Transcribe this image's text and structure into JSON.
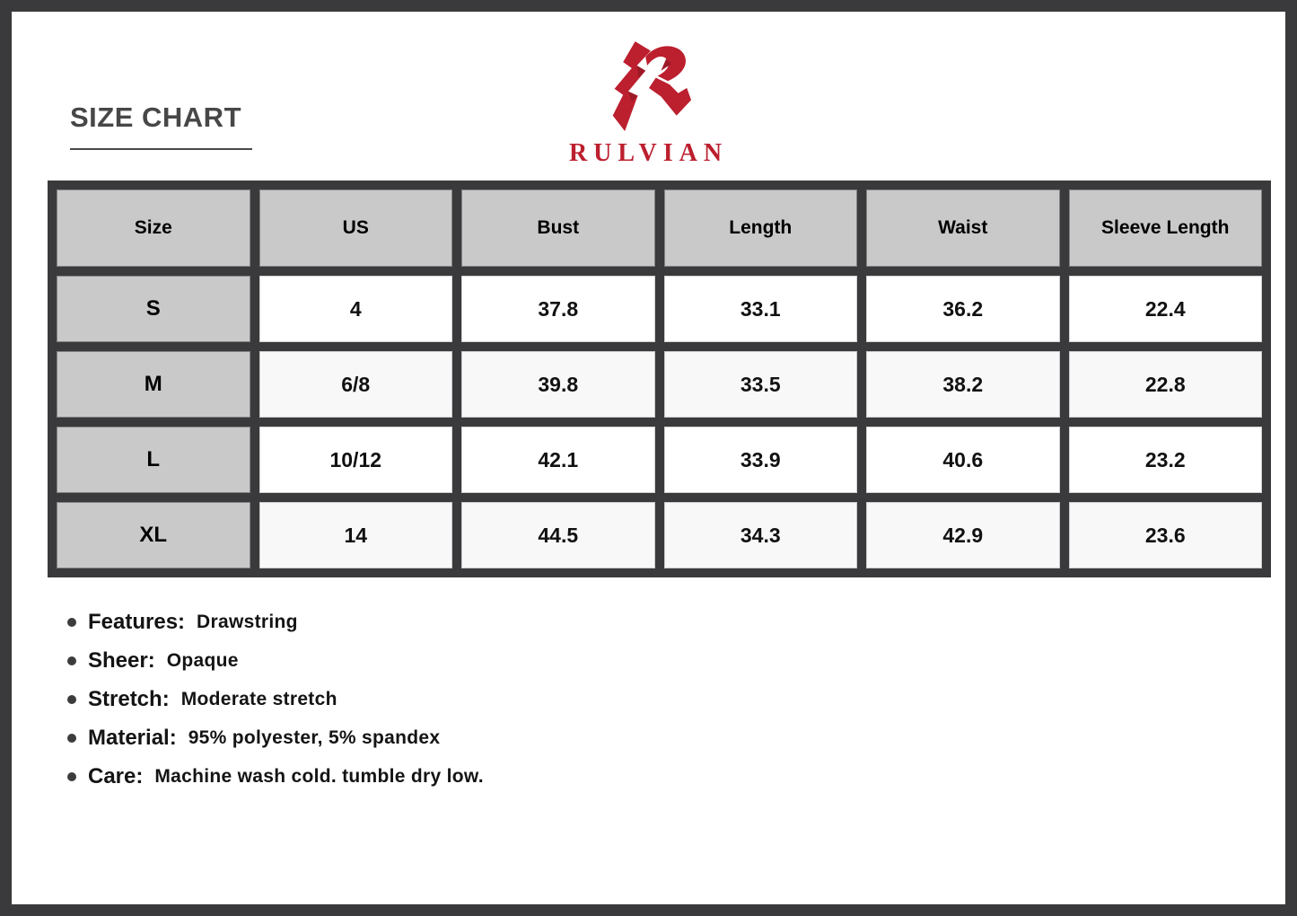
{
  "header": {
    "title": "SIZE CHART"
  },
  "brand": {
    "wordmark": "RULVIAN",
    "logo_icon": "rulvian-r-logo",
    "logo_color": "#bc1f2e"
  },
  "chart_data": {
    "type": "table",
    "title": "SIZE CHART",
    "columns": [
      "Size",
      "US",
      "Bust",
      "Length",
      "Waist",
      "Sleeve Length"
    ],
    "rows": [
      [
        "S",
        "4",
        "37.8",
        "33.1",
        "36.2",
        "22.4"
      ],
      [
        "M",
        "6/8",
        "39.8",
        "33.5",
        "38.2",
        "22.8"
      ],
      [
        "L",
        "10/12",
        "42.1",
        "33.9",
        "40.6",
        "23.2"
      ],
      [
        "XL",
        "14",
        "44.5",
        "34.3",
        "42.9",
        "23.6"
      ]
    ]
  },
  "details": [
    {
      "label": "Features:",
      "value": "Drawstring"
    },
    {
      "label": "Sheer:",
      "value": "Opaque"
    },
    {
      "label": "Stretch:",
      "value": "Moderate stretch"
    },
    {
      "label": "Material:",
      "value": "95% polyester, 5% spandex"
    },
    {
      "label": "Care:",
      "value": "Machine wash cold. tumble dry low."
    }
  ],
  "colors": {
    "frame": "#3a3a3c",
    "header_cell": "#c9c9c9",
    "alt_row": "#f8f8f8",
    "brand_red": "#bc1f2e",
    "title_text": "#474747",
    "body_text": "#141414"
  }
}
